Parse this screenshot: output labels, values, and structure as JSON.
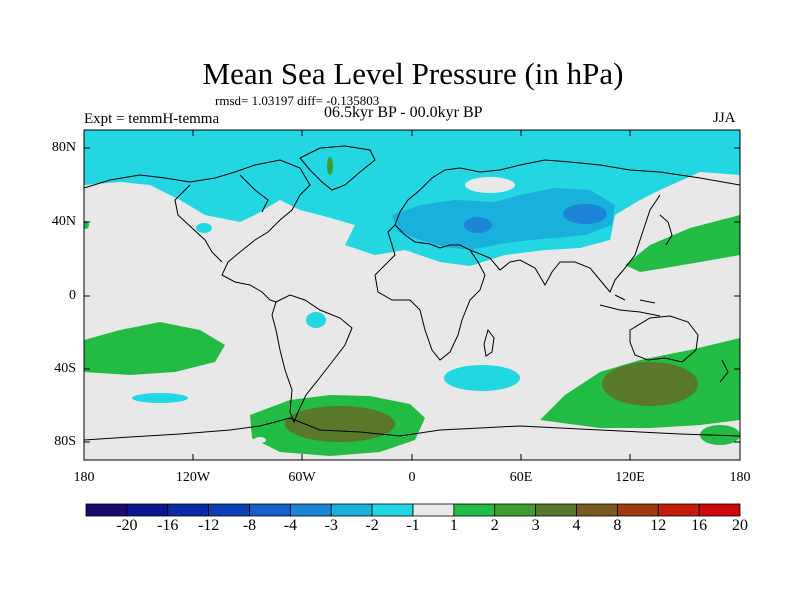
{
  "title": "Mean Sea Level Pressure (in hPa)",
  "stats_text": "rmsd= 1.03197 diff= -0.135803",
  "expt_text": "Expt = temmH-temma",
  "period_text": "06.5kyr BP - 00.0kyr BP",
  "season": "JJA",
  "lat_ticks": [
    "80N",
    "40N",
    "0",
    "40S",
    "80S"
  ],
  "lon_ticks": [
    "180",
    "120W",
    "60W",
    "0",
    "60E",
    "120E",
    "180"
  ],
  "colorbar": {
    "labels": [
      "-20",
      "-16",
      "-12",
      "-8",
      "-4",
      "-3",
      "-2",
      "-1",
      "1",
      "2",
      "3",
      "4",
      "8",
      "12",
      "16",
      "20"
    ],
    "colors": [
      "#1a0a6e",
      "#0a1690",
      "#0a2aa6",
      "#0b3fb8",
      "#1460c8",
      "#1d85d6",
      "#19b0dc",
      "#22d6e2",
      "#e8e8e8",
      "#22bb44",
      "#3f9b32",
      "#59792a",
      "#7a5a1e",
      "#a03a12",
      "#c31e0a",
      "#cc0a0a"
    ]
  },
  "colors": {
    "background_anomaly": "#e8e8e8",
    "light_negative": "#22d6e2",
    "mid_negative": "#19b0dc",
    "strong_negative": "#1d85d6",
    "light_positive": "#22bb44",
    "mid_positive": "#3f9b32",
    "strong_positive": "#59792a",
    "coastline": "#000000"
  }
}
